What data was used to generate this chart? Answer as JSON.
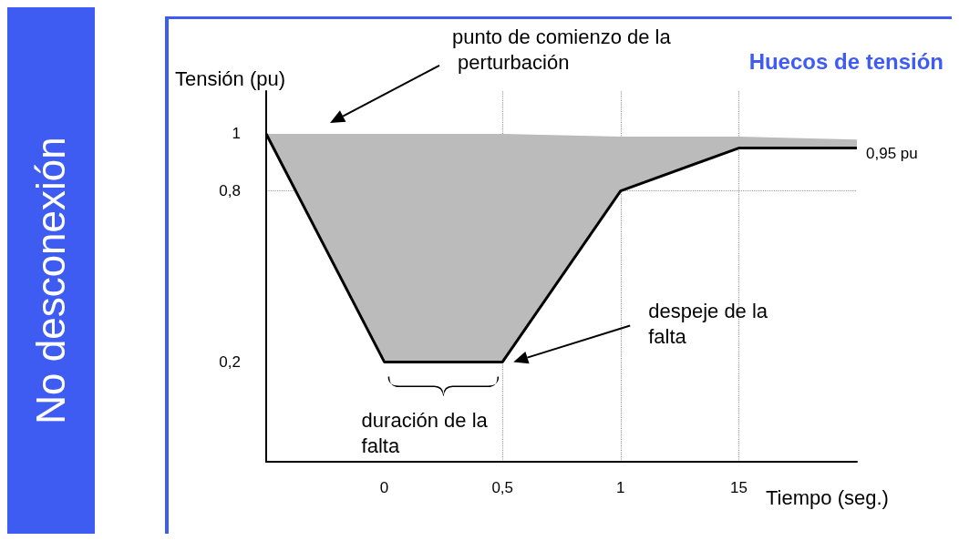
{
  "chart_data": {
    "type": "line",
    "title": "Huecos de tensión",
    "xlabel": "Tiempo (seg.)",
    "ylabel": "Tensión (pu)",
    "categories": [
      null,
      "0",
      "0,5",
      "1",
      "15",
      null
    ],
    "series": [
      {
        "color": "#000000",
        "values": [
          1,
          0.2,
          0.2,
          0.8,
          0.95,
          0.95
        ],
        "lower": [
          1,
          0.2,
          0.2,
          0.8,
          0.95,
          0.95
        ],
        "upper": [
          1,
          1,
          1,
          0.99,
          0.99,
          0.98
        ]
      }
    ],
    "ylim": [
      -0.15,
      1.15
    ],
    "yticks": [
      {
        "value": 0.2,
        "label": "0,2"
      },
      {
        "value": 0.8,
        "label": "0,8"
      },
      1
    ],
    "ref_lines": [
      {
        "axis": "y",
        "value": 0.8,
        "color": "#999999",
        "line_style": "dotted"
      },
      {
        "axis": "x",
        "value": "0,5",
        "color": "#999999",
        "line_style": "dotted"
      },
      {
        "axis": "x",
        "value": "1",
        "color": "#999999",
        "line_style": "dotted"
      },
      {
        "axis": "x",
        "value": "15",
        "color": "#999999",
        "line_style": "dotted"
      }
    ],
    "annotations": [
      "No desconexión",
      "punto de comienzo de la perturbación",
      "despeje de la falta",
      "duración de la falta",
      "0,95 pu"
    ],
    "grid": false,
    "marker": "none",
    "line_style": "solid"
  }
}
